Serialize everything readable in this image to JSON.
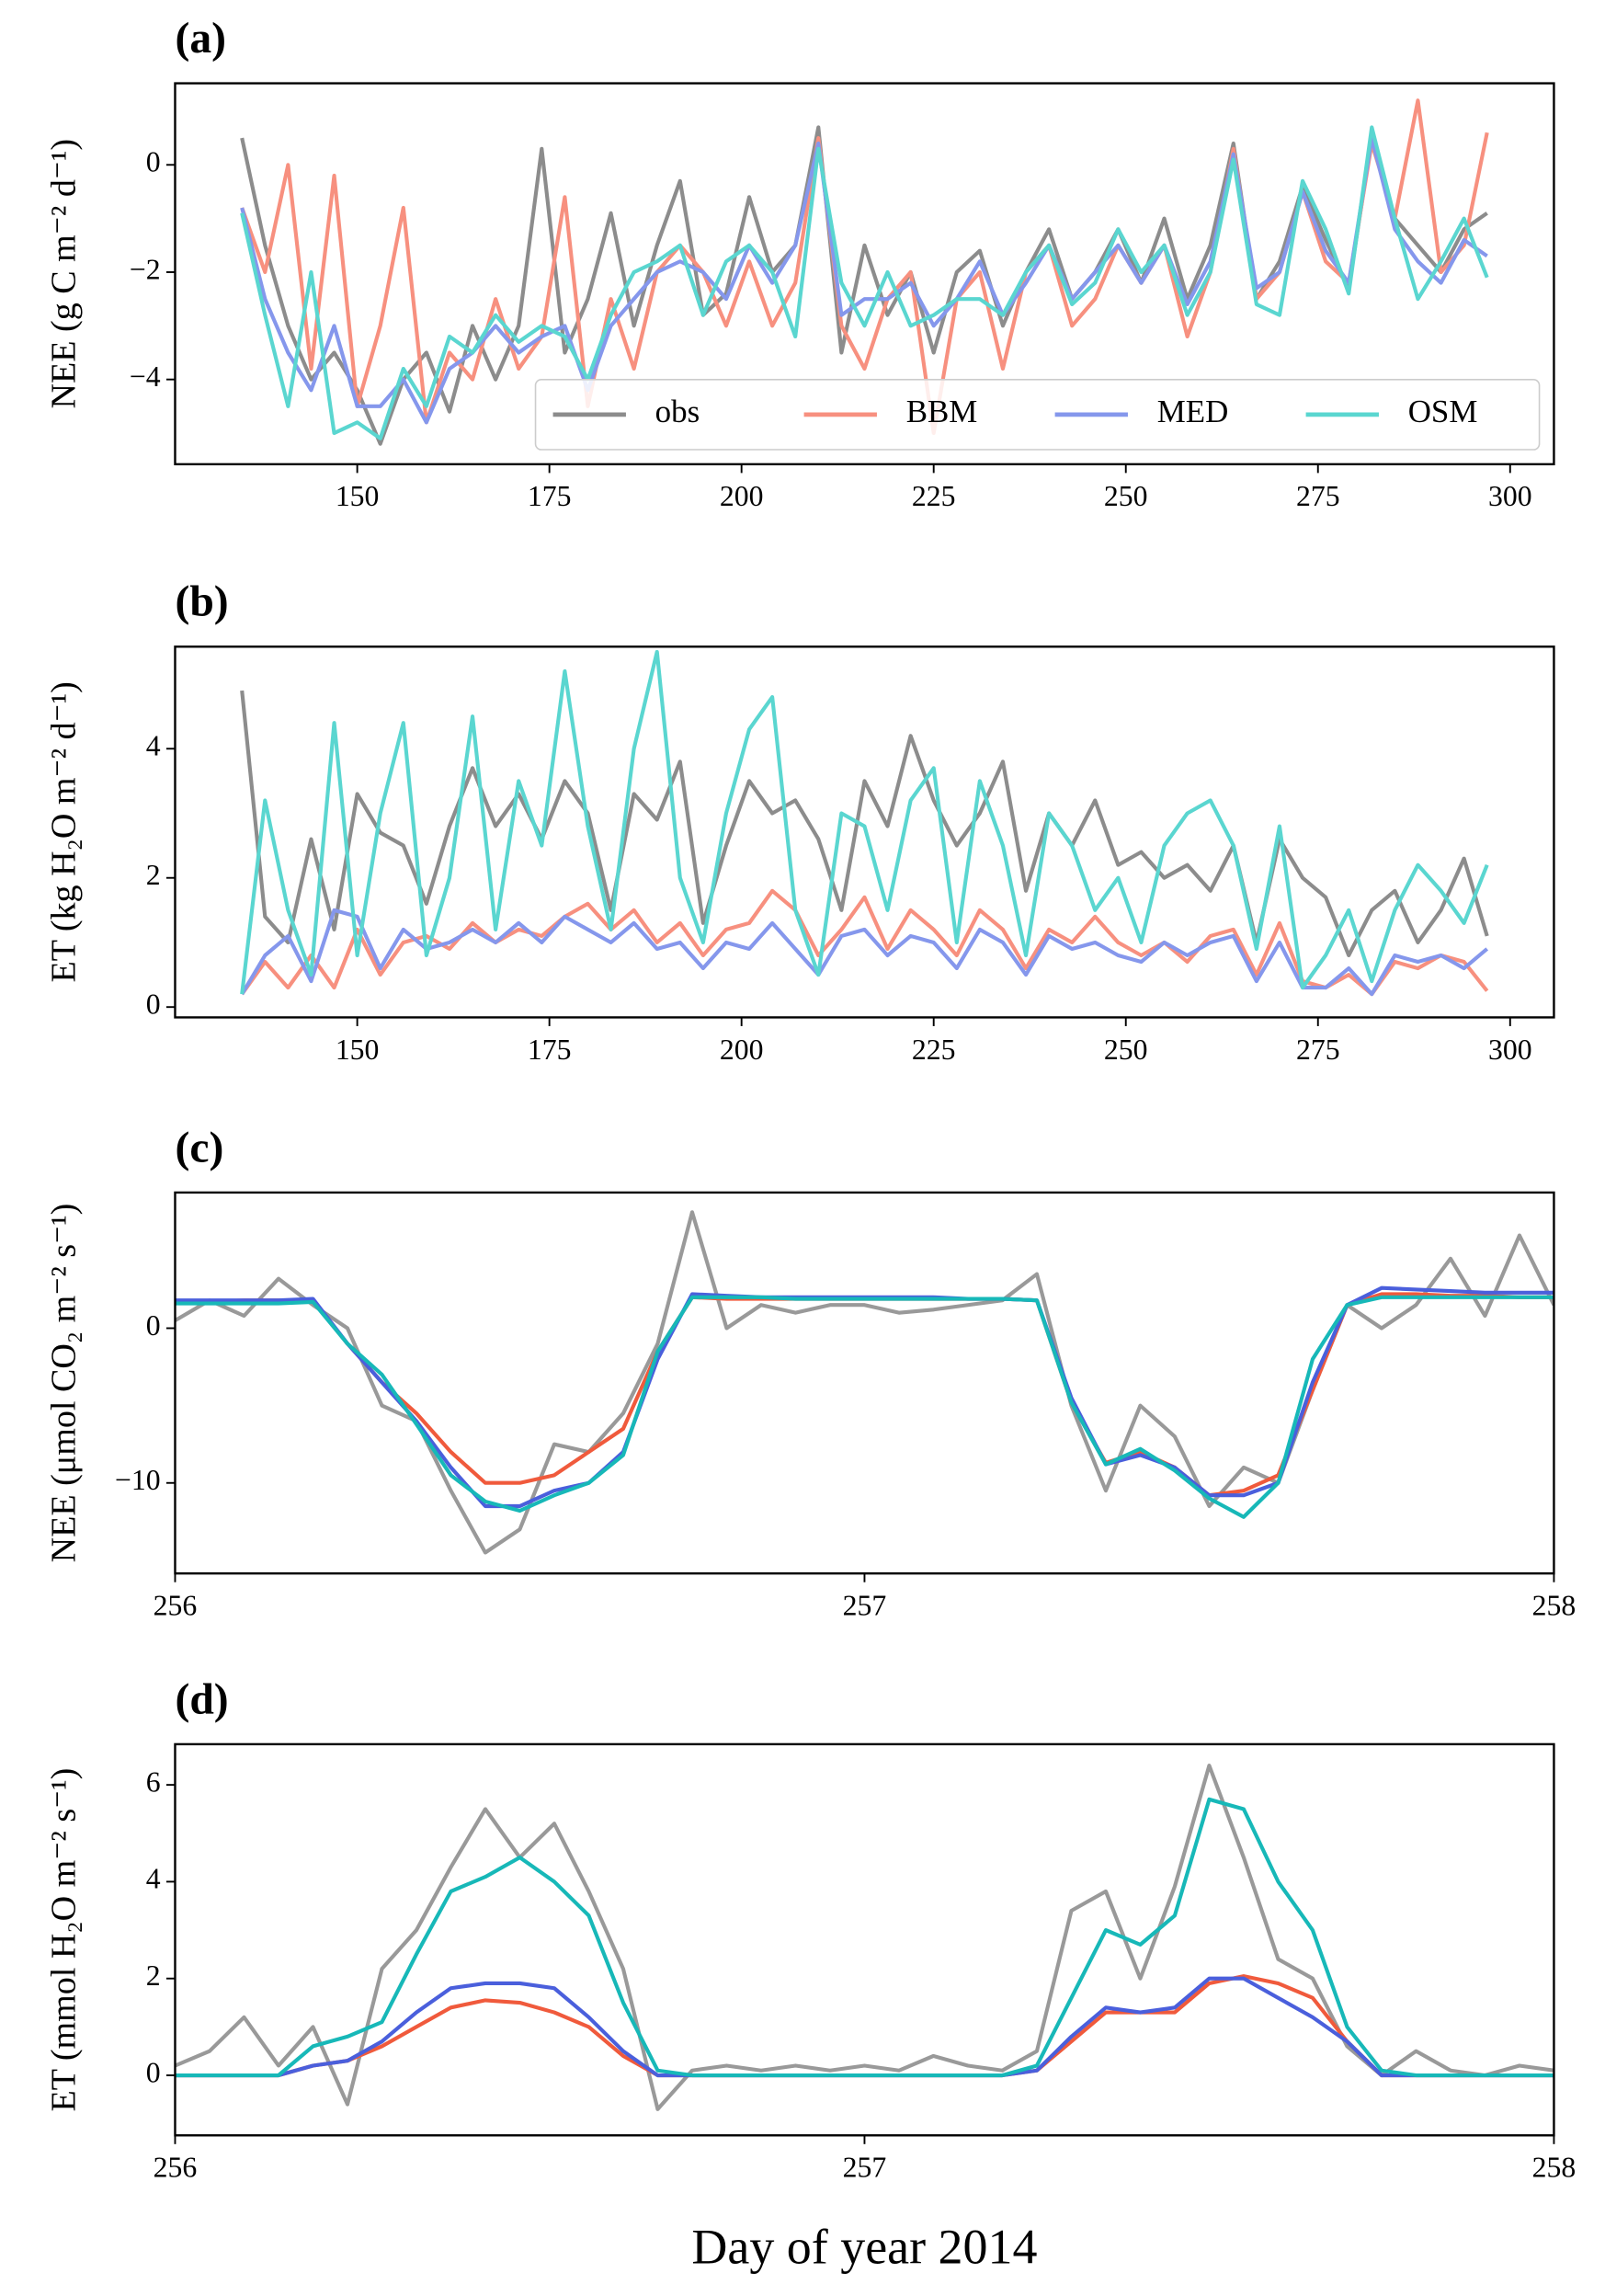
{
  "chart_data": [
    {
      "type": "line",
      "title": "(a)",
      "ylabel": "NEE (g C m⁻² d⁻¹)",
      "legend": "lower right",
      "xlim": [
        126.3,
        305.7
      ],
      "ylim": [
        -5.58,
        1.52
      ],
      "xticks": [
        150,
        175,
        200,
        225,
        250,
        275,
        300
      ],
      "yticks": [
        {
          "value": -4,
          "label": "−4"
        },
        {
          "value": -2,
          "label": "−2"
        },
        0
      ],
      "x": [
        135,
        138,
        141,
        144,
        147,
        150,
        153,
        156,
        159,
        162,
        165,
        168,
        171,
        174,
        177,
        180,
        183,
        186,
        189,
        192,
        195,
        198,
        201,
        204,
        207,
        210,
        213,
        216,
        219,
        222,
        225,
        228,
        231,
        234,
        237,
        240,
        243,
        246,
        249,
        252,
        255,
        258,
        261,
        264,
        267,
        270,
        273,
        276,
        279,
        282,
        285,
        288,
        291,
        294,
        297
      ],
      "series": [
        {
          "name": "obs",
          "color": "#8c8c8c",
          "values": [
            0.5,
            -1.5,
            -3.0,
            -4.0,
            -3.5,
            -4.2,
            -5.2,
            -4.0,
            -3.5,
            -4.6,
            -3.0,
            -4.0,
            -3.0,
            0.3,
            -3.5,
            -2.5,
            -0.9,
            -3.0,
            -1.5,
            -0.3,
            -2.8,
            -2.4,
            -0.6,
            -2.0,
            -1.5,
            0.7,
            -3.5,
            -1.5,
            -2.8,
            -2.0,
            -3.5,
            -2.0,
            -1.6,
            -3.0,
            -2.0,
            -1.2,
            -2.5,
            -2.0,
            -1.2,
            -2.2,
            -1.0,
            -2.5,
            -1.5,
            0.4,
            -2.5,
            -1.8,
            -0.4,
            -1.4,
            -2.3,
            0.5,
            -1.0,
            -1.5,
            -2.0,
            -1.2,
            -0.9
          ]
        },
        {
          "name": "BBM",
          "color": "#f7907f",
          "values": [
            -0.8,
            -2.0,
            0.0,
            -3.8,
            -0.2,
            -4.5,
            -3.0,
            -0.8,
            -4.8,
            -3.5,
            -4.0,
            -2.5,
            -3.8,
            -3.2,
            -0.6,
            -4.5,
            -2.5,
            -3.8,
            -2.0,
            -1.5,
            -2.0,
            -3.0,
            -1.8,
            -3.0,
            -2.2,
            0.5,
            -3.0,
            -3.8,
            -2.5,
            -2.0,
            -5.0,
            -2.5,
            -2.0,
            -3.8,
            -2.0,
            -1.5,
            -3.0,
            -2.5,
            -1.5,
            -2.2,
            -1.5,
            -3.2,
            -2.0,
            0.3,
            -2.5,
            -2.0,
            -0.5,
            -1.8,
            -2.2,
            0.4,
            -1.0,
            1.2,
            -2.0,
            -1.5,
            0.6
          ]
        },
        {
          "name": "MED",
          "color": "#8597ec",
          "values": [
            -0.8,
            -2.5,
            -3.5,
            -4.2,
            -3.0,
            -4.5,
            -4.5,
            -4.0,
            -4.8,
            -3.8,
            -3.5,
            -3.0,
            -3.5,
            -3.2,
            -3.0,
            -4.2,
            -3.0,
            -2.5,
            -2.0,
            -1.8,
            -2.0,
            -2.5,
            -1.5,
            -2.2,
            -1.5,
            0.4,
            -2.8,
            -2.5,
            -2.5,
            -2.2,
            -3.0,
            -2.5,
            -1.8,
            -2.8,
            -2.2,
            -1.5,
            -2.5,
            -2.0,
            -1.5,
            -2.2,
            -1.5,
            -2.6,
            -1.8,
            0.2,
            -2.3,
            -2.0,
            -0.5,
            -1.6,
            -2.2,
            0.5,
            -1.2,
            -1.8,
            -2.2,
            -1.4,
            -1.7
          ]
        },
        {
          "name": "OSM",
          "color": "#5ad6d0",
          "values": [
            -0.9,
            -2.8,
            -4.5,
            -2.0,
            -5.0,
            -4.8,
            -5.1,
            -3.8,
            -4.5,
            -3.2,
            -3.5,
            -2.8,
            -3.3,
            -3.0,
            -3.2,
            -4.0,
            -2.8,
            -2.0,
            -1.8,
            -1.5,
            -2.8,
            -1.8,
            -1.5,
            -2.0,
            -3.2,
            0.3,
            -2.2,
            -3.0,
            -2.0,
            -3.0,
            -2.8,
            -2.5,
            -2.5,
            -2.8,
            -2.0,
            -1.5,
            -2.6,
            -2.2,
            -1.2,
            -2.0,
            -1.5,
            -2.8,
            -2.0,
            0.1,
            -2.6,
            -2.8,
            -0.3,
            -1.2,
            -2.4,
            0.7,
            -1.0,
            -2.5,
            -1.8,
            -1.0,
            -2.1
          ]
        }
      ]
    },
    {
      "type": "line",
      "title": "(b)",
      "ylabel": "ET (kg H₂O m⁻² d⁻¹)",
      "xlim": [
        126.3,
        305.7
      ],
      "ylim": [
        -0.16,
        5.58
      ],
      "xticks": [
        150,
        175,
        200,
        225,
        250,
        275,
        300
      ],
      "yticks": [
        0,
        2,
        4
      ],
      "x": [
        135,
        138,
        141,
        144,
        147,
        150,
        153,
        156,
        159,
        162,
        165,
        168,
        171,
        174,
        177,
        180,
        183,
        186,
        189,
        192,
        195,
        198,
        201,
        204,
        207,
        210,
        213,
        216,
        219,
        222,
        225,
        228,
        231,
        234,
        237,
        240,
        243,
        246,
        249,
        252,
        255,
        258,
        261,
        264,
        267,
        270,
        273,
        276,
        279,
        282,
        285,
        288,
        291,
        294,
        297
      ],
      "series": [
        {
          "color": "#8c8c8c",
          "values": [
            4.9,
            1.4,
            1.0,
            2.6,
            1.2,
            3.3,
            2.7,
            2.5,
            1.6,
            2.8,
            3.7,
            2.8,
            3.3,
            2.6,
            3.5,
            3.0,
            1.5,
            3.3,
            2.9,
            3.8,
            1.3,
            2.5,
            3.5,
            3.0,
            3.2,
            2.6,
            1.5,
            3.5,
            2.8,
            4.2,
            3.2,
            2.5,
            3.0,
            3.8,
            1.8,
            3.0,
            2.5,
            3.2,
            2.2,
            2.4,
            2.0,
            2.2,
            1.8,
            2.5,
            1.0,
            2.6,
            2.0,
            1.7,
            0.8,
            1.5,
            1.8,
            1.0,
            1.5,
            2.3,
            1.1
          ]
        },
        {
          "color": "#f7907f",
          "values": [
            0.2,
            0.7,
            0.3,
            0.8,
            0.3,
            1.2,
            0.5,
            1.0,
            1.1,
            0.9,
            1.3,
            1.0,
            1.2,
            1.1,
            1.4,
            1.6,
            1.2,
            1.5,
            1.0,
            1.3,
            0.8,
            1.2,
            1.3,
            1.8,
            1.5,
            0.8,
            1.2,
            1.7,
            0.9,
            1.5,
            1.2,
            0.8,
            1.5,
            1.2,
            0.6,
            1.2,
            1.0,
            1.4,
            1.0,
            0.8,
            1.0,
            0.7,
            1.1,
            1.2,
            0.5,
            1.3,
            0.4,
            0.3,
            0.5,
            0.2,
            0.7,
            0.6,
            0.8,
            0.7,
            0.25
          ]
        },
        {
          "color": "#8597ec",
          "values": [
            0.2,
            0.8,
            1.1,
            0.4,
            1.5,
            1.4,
            0.6,
            1.2,
            0.9,
            1.0,
            1.2,
            1.0,
            1.3,
            1.0,
            1.4,
            1.2,
            1.0,
            1.3,
            0.9,
            1.0,
            0.6,
            1.0,
            0.9,
            1.3,
            0.9,
            0.5,
            1.1,
            1.2,
            0.8,
            1.1,
            1.0,
            0.6,
            1.2,
            1.0,
            0.5,
            1.1,
            0.9,
            1.0,
            0.8,
            0.7,
            1.0,
            0.8,
            1.0,
            1.1,
            0.4,
            1.0,
            0.3,
            0.3,
            0.6,
            0.2,
            0.8,
            0.7,
            0.8,
            0.6,
            0.9
          ]
        },
        {
          "color": "#5ad6d0",
          "values": [
            0.2,
            3.2,
            1.5,
            0.5,
            4.4,
            0.8,
            3.0,
            4.4,
            0.8,
            2.0,
            4.5,
            1.2,
            3.5,
            2.5,
            5.2,
            2.8,
            1.2,
            4.0,
            5.5,
            2.0,
            1.0,
            3.0,
            4.3,
            4.8,
            1.5,
            0.5,
            3.0,
            2.8,
            1.5,
            3.2,
            3.7,
            1.0,
            3.5,
            2.5,
            0.8,
            3.0,
            2.5,
            1.5,
            2.0,
            1.0,
            2.5,
            3.0,
            3.2,
            2.5,
            0.9,
            2.8,
            0.3,
            0.8,
            1.5,
            0.4,
            1.5,
            2.2,
            1.8,
            1.3,
            2.2
          ]
        }
      ]
    },
    {
      "type": "line",
      "title": "(c)",
      "ylabel": "NEE (μmol CO₂ m⁻² s⁻¹)",
      "xlim": [
        256,
        258
      ],
      "ylim": [
        -15.85,
        8.77
      ],
      "xticks": [
        256,
        257,
        258
      ],
      "yticks": [
        {
          "value": -10,
          "label": "−10"
        },
        0
      ],
      "x": [
        256.0,
        256.05,
        256.1,
        256.15,
        256.2,
        256.25,
        256.3,
        256.35,
        256.4,
        256.45,
        256.5,
        256.55,
        256.6,
        256.65,
        256.7,
        256.75,
        256.8,
        256.85,
        256.9,
        256.95,
        257.0,
        257.05,
        257.1,
        257.15,
        257.2,
        257.25,
        257.3,
        257.35,
        257.4,
        257.45,
        257.5,
        257.55,
        257.6,
        257.65,
        257.7,
        257.75,
        257.8,
        257.85,
        257.9,
        257.95,
        258.0
      ],
      "series": [
        {
          "color": "#999999",
          "values": [
            0.5,
            1.8,
            0.8,
            3.2,
            1.5,
            0.0,
            -5.0,
            -6.0,
            -10.5,
            -14.5,
            -13.0,
            -7.5,
            -8.0,
            -5.5,
            -1.0,
            7.5,
            0.0,
            1.5,
            1.0,
            1.5,
            1.5,
            1.0,
            1.2,
            1.5,
            1.8,
            3.5,
            -5.0,
            -10.5,
            -5.0,
            -7.0,
            -11.5,
            -9.0,
            -10.0,
            -4.0,
            1.5,
            0.0,
            1.5,
            4.5,
            0.8,
            6.0,
            1.5
          ]
        },
        {
          "color": "#f05a3c",
          "values": [
            1.7,
            1.7,
            1.8,
            1.8,
            1.8,
            -1.0,
            -3.5,
            -5.5,
            -8.0,
            -10.0,
            -10.0,
            -9.5,
            -8.0,
            -6.5,
            -1.5,
            2.0,
            1.9,
            1.9,
            1.9,
            1.9,
            1.9,
            1.9,
            1.9,
            1.9,
            1.9,
            1.8,
            -4.8,
            -8.7,
            -8.0,
            -9.0,
            -10.8,
            -10.5,
            -9.5,
            -4.0,
            1.5,
            2.2,
            2.2,
            2.1,
            2.1,
            2.0,
            2.0
          ]
        },
        {
          "color": "#4a5fdc",
          "values": [
            1.8,
            1.8,
            1.8,
            1.8,
            1.9,
            -1.0,
            -3.5,
            -6.0,
            -9.0,
            -11.5,
            -11.5,
            -10.5,
            -10.0,
            -8.0,
            -2.0,
            2.2,
            2.1,
            2.0,
            2.0,
            2.0,
            2.0,
            2.0,
            2.0,
            1.9,
            1.9,
            1.8,
            -4.5,
            -8.8,
            -8.2,
            -9.0,
            -10.8,
            -10.8,
            -10.0,
            -3.5,
            1.5,
            2.6,
            2.5,
            2.4,
            2.3,
            2.3,
            2.3
          ]
        },
        {
          "color": "#17b8b8",
          "values": [
            1.6,
            1.6,
            1.6,
            1.6,
            1.7,
            -1.0,
            -3.0,
            -6.2,
            -9.5,
            -11.2,
            -11.8,
            -10.8,
            -10.0,
            -8.2,
            -1.5,
            2.0,
            2.0,
            2.0,
            1.9,
            1.9,
            1.9,
            1.9,
            1.9,
            1.9,
            1.9,
            1.8,
            -4.8,
            -8.8,
            -7.8,
            -9.2,
            -11.0,
            -12.2,
            -10.0,
            -2.0,
            1.5,
            2.0,
            2.0,
            2.0,
            2.0,
            2.0,
            2.0
          ]
        }
      ]
    },
    {
      "type": "line",
      "title": "(d)",
      "ylabel": "ET (mmol H₂O m⁻² s⁻¹)",
      "xlabel": "Day of year 2014",
      "xlim": [
        256,
        258
      ],
      "ylim": [
        -1.24,
        6.84
      ],
      "xticks": [
        256,
        257,
        258
      ],
      "yticks": [
        0,
        2,
        4,
        6
      ],
      "x": [
        256.0,
        256.05,
        256.1,
        256.15,
        256.2,
        256.25,
        256.3,
        256.35,
        256.4,
        256.45,
        256.5,
        256.55,
        256.6,
        256.65,
        256.7,
        256.75,
        256.8,
        256.85,
        256.9,
        256.95,
        257.0,
        257.05,
        257.1,
        257.15,
        257.2,
        257.25,
        257.3,
        257.35,
        257.4,
        257.45,
        257.5,
        257.55,
        257.6,
        257.65,
        257.7,
        257.75,
        257.8,
        257.85,
        257.9,
        257.95,
        258.0
      ],
      "series": [
        {
          "color": "#999999",
          "values": [
            0.2,
            0.5,
            1.2,
            0.2,
            1.0,
            -0.6,
            2.2,
            3.0,
            4.3,
            5.5,
            4.5,
            5.2,
            3.8,
            2.2,
            -0.7,
            0.1,
            0.2,
            0.1,
            0.2,
            0.1,
            0.2,
            0.1,
            0.4,
            0.2,
            0.1,
            0.5,
            3.4,
            3.8,
            2.0,
            3.9,
            6.4,
            4.5,
            2.4,
            2.0,
            0.6,
            0.0,
            0.5,
            0.1,
            0.0,
            0.2,
            0.1
          ]
        },
        {
          "color": "#f05a3c",
          "values": [
            0,
            0,
            0,
            0,
            0.2,
            0.3,
            0.6,
            1.0,
            1.4,
            1.55,
            1.5,
            1.3,
            1.0,
            0.4,
            0,
            0,
            0,
            0,
            0,
            0,
            0,
            0,
            0,
            0,
            0,
            0.1,
            0.7,
            1.3,
            1.3,
            1.3,
            1.9,
            2.05,
            1.9,
            1.6,
            0.7,
            0,
            0,
            0,
            0,
            0,
            0
          ]
        },
        {
          "color": "#4a5fdc",
          "values": [
            0,
            0,
            0,
            0,
            0.2,
            0.3,
            0.7,
            1.3,
            1.8,
            1.9,
            1.9,
            1.8,
            1.2,
            0.5,
            0,
            0,
            0,
            0,
            0,
            0,
            0,
            0,
            0,
            0,
            0,
            0.1,
            0.8,
            1.4,
            1.3,
            1.4,
            2.0,
            2.0,
            1.6,
            1.2,
            0.7,
            0,
            0,
            0,
            0,
            0,
            0
          ]
        },
        {
          "color": "#17b8b8",
          "values": [
            0,
            0,
            0,
            0,
            0.6,
            0.8,
            1.1,
            2.5,
            3.8,
            4.1,
            4.5,
            4.0,
            3.3,
            1.5,
            0.1,
            0,
            0,
            0,
            0,
            0,
            0,
            0,
            0,
            0,
            0,
            0.2,
            1.6,
            3.0,
            2.7,
            3.3,
            5.7,
            5.5,
            4.0,
            3.0,
            1.0,
            0.1,
            0,
            0,
            0,
            0,
            0
          ]
        }
      ]
    }
  ]
}
